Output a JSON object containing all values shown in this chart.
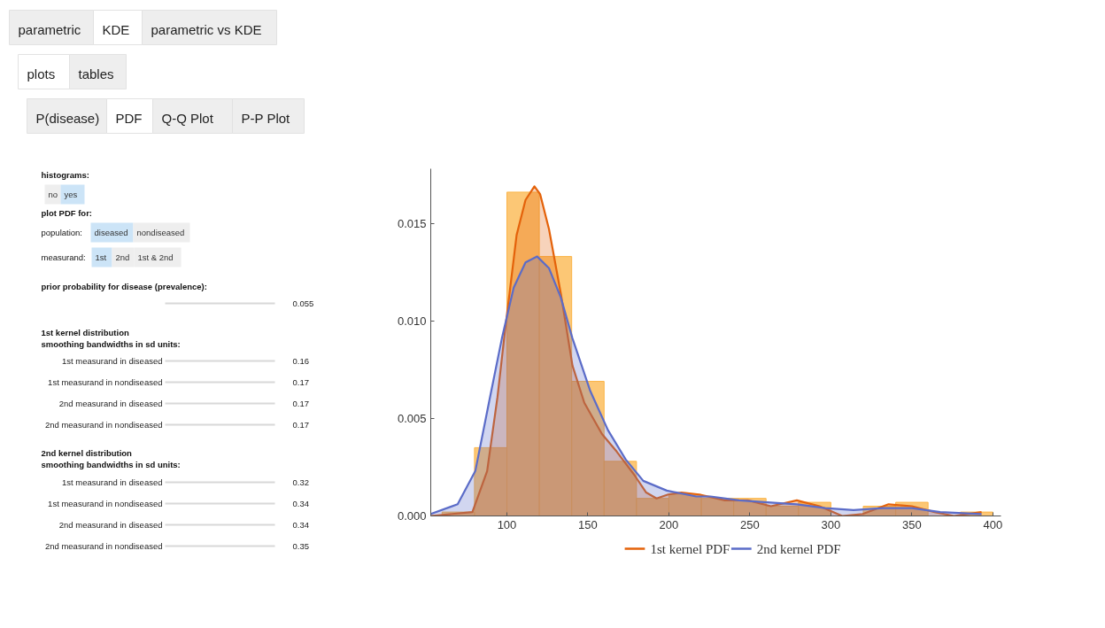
{
  "chart_data": [
    {
      "type": "other",
      "annotations": [
        "parametric",
        "KDE",
        "parametric vs KDE",
        "plots",
        "tables",
        "P(disease)",
        "PDF",
        "Q-Q Plot",
        "P-P Plot",
        "histograms:",
        "no",
        "yes",
        "plot PDF for:",
        "population:",
        "diseased",
        "nondiseased",
        "measurand:",
        "1st",
        "2nd",
        "1st & 2nd",
        "prior probability for disease (prevalence):",
        "0.055",
        "1st kernel distribution",
        "smoothing bandwidths in sd units:",
        "1st measurand in diseased",
        "0.16",
        "1st measurand in nondiseased",
        "0.17",
        "2nd measurand in diseased",
        "0.17",
        "2nd measurand in nondiseased",
        "0.17",
        "2nd kernel distribution",
        "smoothing bandwidths in sd units:",
        "1st measurand in diseased",
        "0.32",
        "1st measurand in nondiseased",
        "0.34",
        "2nd measurand in diseased",
        "0.34",
        "2nd measurand in nondiseased",
        "0.35"
      ]
    },
    {
      "type": "histogram",
      "bins": [
        60,
        80,
        100,
        120,
        140,
        160,
        180,
        200,
        220,
        240,
        260,
        280,
        300,
        320,
        340,
        360,
        380,
        400
      ],
      "values": [
        0.0002,
        0.0035,
        0.0166,
        0.0133,
        0.0069,
        0.0028,
        0.0009,
        0.0011,
        0.0009,
        0.0009,
        0.0005,
        0.0007,
        0,
        0.0005,
        0.0007,
        0,
        0.0002
      ],
      "color": "#fbb447",
      "series": [
        {
          "name": "1st kernel PDF",
          "color": "#e4620a",
          "type": "area",
          "x": [
            53,
            78.7,
            87.8,
            94.2,
            98.7,
            106,
            111.5,
            117,
            120.5,
            126,
            133.3,
            140.5,
            147.8,
            158.7,
            167.8,
            178.7,
            186,
            192.4,
            199.6,
            207.8,
            218.7,
            234.6,
            248.8,
            263,
            279,
            293,
            307,
            319.7,
            335.6,
            350,
            364,
            376,
            393
          ],
          "values": [
            0,
            0.0002,
            0.0023,
            0.0061,
            0.0094,
            0.0144,
            0.0162,
            0.0169,
            0.0165,
            0.0147,
            0.0114,
            0.0077,
            0.0058,
            0.0042,
            0.0033,
            0.0021,
            0.0012,
            0.0009,
            0.0011,
            0.0012,
            0.0011,
            0.0008,
            0.0008,
            0.0005,
            0.0008,
            0.0005,
            0,
            0.0001,
            0.0006,
            0.0005,
            0.0002,
            0,
            0.0002
          ]
        },
        {
          "name": "2nd kernel PDF",
          "color": "#5b6cc8",
          "type": "area",
          "x": [
            53,
            69.6,
            80.5,
            89.6,
            96.9,
            104.2,
            111.5,
            118.7,
            126,
            133.3,
            140.5,
            151.5,
            162.4,
            173.3,
            184.2,
            198.7,
            216.9,
            225.7,
            243.4,
            261,
            279,
            296.6,
            314,
            332,
            350,
            367.5,
            393
          ],
          "values": [
            0.0001,
            0.0006,
            0.0023,
            0.0061,
            0.0091,
            0.0117,
            0.013,
            0.0133,
            0.0127,
            0.0112,
            0.0091,
            0.0064,
            0.0044,
            0.0029,
            0.0018,
            0.0013,
            0.001,
            0.001,
            0.0008,
            0.0007,
            0.0006,
            0.0004,
            0.0003,
            0.0004,
            0.0004,
            0.0002,
            0.0001
          ]
        }
      ],
      "xlim": [
        53,
        405
      ],
      "ylim": [
        0,
        0.0178
      ],
      "xticks": [
        100,
        150,
        200,
        250,
        300,
        350,
        400
      ],
      "yticks": [
        {
          "value": 0,
          "label": "0.000"
        },
        {
          "value": 0.005,
          "label": "0.005"
        },
        {
          "value": 0.01,
          "label": "0.010"
        },
        {
          "value": 0.015,
          "label": "0.015"
        }
      ],
      "legend": "bottom"
    }
  ]
}
